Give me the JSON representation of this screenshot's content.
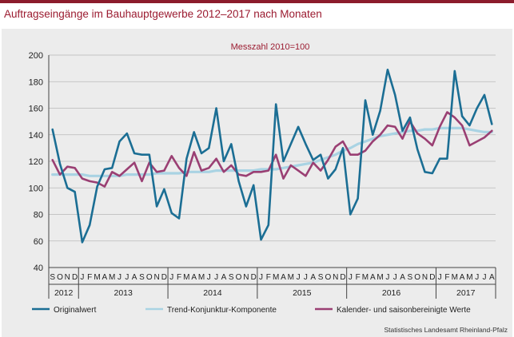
{
  "title": "Auftragseingänge im Bauhauptgewerbe 2012–2017 nach Monaten",
  "source": "Statistisches Landesamt Rheinland-Pfalz",
  "colors": {
    "frame": "#8c1c2c",
    "title": "#9b1b30",
    "original": "#1b6e94",
    "trend": "#a9d3e3",
    "adjusted": "#9a3f73",
    "panel": "#ececec",
    "grid": "#b8b8b8"
  },
  "chart_data": {
    "type": "line",
    "subtitle": "Messzahl 2010=100",
    "ylim": [
      40,
      200
    ],
    "yticks": [
      40,
      60,
      80,
      100,
      120,
      140,
      160,
      180,
      200
    ],
    "grid": true,
    "legend_position": "bottom",
    "month_labels": [
      "S",
      "O",
      "N",
      "D",
      "J",
      "F",
      "M",
      "A",
      "M",
      "J",
      "J",
      "A",
      "S",
      "O",
      "N",
      "D",
      "J",
      "F",
      "M",
      "A",
      "M",
      "J",
      "J",
      "A",
      "S",
      "O",
      "N",
      "D",
      "J",
      "F",
      "M",
      "A",
      "M",
      "J",
      "J",
      "A",
      "S",
      "O",
      "N",
      "D",
      "J",
      "F",
      "M",
      "A",
      "M",
      "J",
      "J",
      "A",
      "S",
      "O",
      "N",
      "D",
      "J",
      "F",
      "M",
      "A",
      "M",
      "J",
      "J",
      "A"
    ],
    "years": [
      {
        "label": "2012",
        "start": 0,
        "count": 4
      },
      {
        "label": "2013",
        "start": 4,
        "count": 12
      },
      {
        "label": "2014",
        "start": 16,
        "count": 12
      },
      {
        "label": "2015",
        "start": 28,
        "count": 12
      },
      {
        "label": "2016",
        "start": 40,
        "count": 12
      },
      {
        "label": "2017",
        "start": 52,
        "count": 8
      }
    ],
    "series": [
      {
        "name": "Originalwert",
        "color": "#1b6e94",
        "values": [
          144,
          118,
          100,
          97,
          59,
          72,
          101,
          114,
          115,
          135,
          141,
          126,
          125,
          125,
          86,
          99,
          81,
          77,
          122,
          142,
          126,
          130,
          160,
          120,
          133,
          105,
          86,
          102,
          61,
          72,
          163,
          120,
          133,
          146,
          133,
          121,
          125,
          107,
          114,
          130,
          80,
          92,
          166,
          140,
          158,
          189,
          170,
          143,
          153,
          129,
          112,
          111,
          122,
          122,
          188,
          154,
          147,
          160,
          170,
          148
        ]
      },
      {
        "name": "Trend-Konjunktur-Komponente",
        "color": "#a9d3e3",
        "values": [
          110,
          110,
          110,
          110,
          110,
          109,
          109,
          109,
          109,
          109,
          110,
          110,
          110,
          110,
          111,
          111,
          111,
          111,
          112,
          112,
          112,
          112,
          113,
          113,
          113,
          113,
          113,
          113,
          114,
          114,
          114,
          115,
          116,
          117,
          118,
          119,
          121,
          123,
          125,
          128,
          130,
          133,
          135,
          137,
          139,
          140,
          141,
          142,
          143,
          143,
          144,
          144,
          145,
          145,
          145,
          145,
          144,
          143,
          142,
          142
        ]
      },
      {
        "name": "Kalender- und saisonbereinigte Werte",
        "color": "#9a3f73",
        "values": [
          121,
          110,
          116,
          115,
          107,
          105,
          104,
          101,
          112,
          109,
          114,
          119,
          105,
          119,
          112,
          113,
          124,
          115,
          109,
          127,
          113,
          115,
          122,
          112,
          117,
          110,
          109,
          112,
          112,
          113,
          125,
          107,
          117,
          113,
          109,
          119,
          113,
          121,
          131,
          135,
          125,
          125,
          128,
          135,
          140,
          147,
          146,
          137,
          150,
          141,
          137,
          132,
          146,
          157,
          153,
          147,
          132,
          135,
          138,
          143
        ]
      }
    ]
  }
}
